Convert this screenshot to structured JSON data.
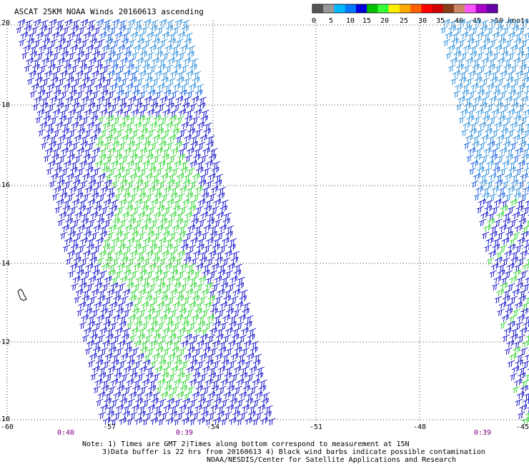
{
  "title": "ASCAT 25KM NOAA Winds 20160613 ascending",
  "colorbar": {
    "colors": [
      "#555555",
      "#9a9a9a",
      "#00b8ff",
      "#0077ff",
      "#0000e0",
      "#00c000",
      "#33ff33",
      "#ffee00",
      "#ffaa00",
      "#ff6000",
      "#ff0000",
      "#cc0000",
      "#8a3d1a",
      "#cc8866",
      "#ff55ff",
      "#aa00cc",
      "#6600aa"
    ],
    "labels": [
      "0",
      "5",
      "10",
      "15",
      "20",
      "25",
      "30",
      "35",
      "40",
      "45",
      ">50 knots"
    ]
  },
  "axes": {
    "lat_ticks": [
      "20",
      "18",
      "16",
      "14",
      "12",
      "10"
    ],
    "lon_ticks": [
      "-60",
      "-57",
      "-54",
      "-51",
      "-48",
      "-45"
    ]
  },
  "times": [
    "0:40",
    "0:39",
    "0:39"
  ],
  "notes": [
    "Note: 1) Times are GMT 2)Times along bottom correspond to measurement at 15N",
    "3)Data buffer is 22 hrs from 20160613 4) Black wind barbs indicate possible contamination",
    "NOAA/NESDIS/Center for Satellite Applications and Research"
  ],
  "swath_colors": {
    "dark": "#0000c8",
    "mid": "#0050e0",
    "light": "#1c86d8",
    "green": "#1ed21e"
  }
}
